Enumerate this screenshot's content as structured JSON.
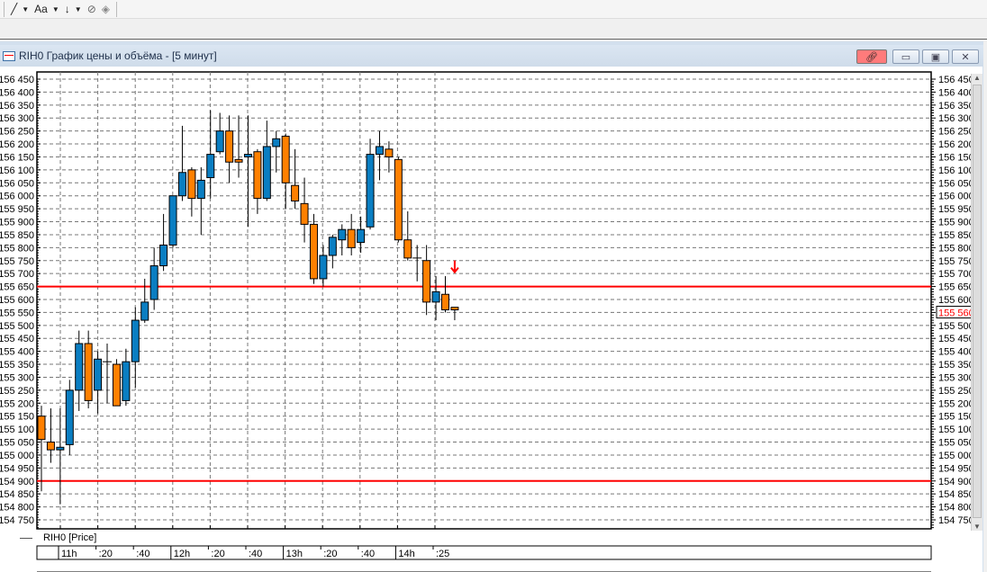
{
  "toolbar": {
    "items": [
      {
        "icon": "line-tool-icon"
      },
      {
        "label": "Aa",
        "icon": "text-tool-icon"
      },
      {
        "icon": "arrow-down-tool-icon"
      },
      {
        "icon": "hide-drawings-icon"
      },
      {
        "icon": "eraser-icon"
      }
    ]
  },
  "window": {
    "title": "RIH0 График цены и объёма - [5 минут]",
    "link_button_color": "#ff7b7b"
  },
  "legend": {
    "label": "RIH0 [Price]"
  },
  "chart_data": {
    "type": "candlestick",
    "title": "",
    "colors": {
      "up": "#0a7ec2",
      "down": "#ff8000",
      "hline": "#ff0000",
      "last_price": "#ff0000"
    },
    "ylim": [
      154750,
      156450
    ],
    "ytick_step": 50,
    "grid": true,
    "xticks": [
      "11h",
      ":20",
      ":40",
      "12h",
      ":20",
      ":40",
      "13h",
      ":20",
      ":40",
      "14h",
      ":25"
    ],
    "last_price_label": "155 560",
    "horizontal_lines": [
      155650,
      154900
    ],
    "arrow_marker": {
      "candle": 44,
      "direction": "down"
    },
    "candles_ohlc": [
      [
        155150,
        155190,
        154860,
        155060
      ],
      [
        155050,
        155180,
        154970,
        155020
      ],
      [
        155020,
        155180,
        154810,
        155030
      ],
      [
        155040,
        155290,
        155000,
        155250
      ],
      [
        155250,
        155480,
        155170,
        155430
      ],
      [
        155430,
        155480,
        155180,
        155210
      ],
      [
        155250,
        155400,
        155160,
        155370
      ],
      [
        155360,
        155430,
        155200,
        155360
      ],
      [
        155350,
        155370,
        155190,
        155190
      ],
      [
        155210,
        155410,
        155190,
        155360
      ],
      [
        155360,
        155570,
        155260,
        155520
      ],
      [
        155520,
        155680,
        155510,
        155590
      ],
      [
        155600,
        155800,
        155560,
        155730
      ],
      [
        155730,
        155930,
        155710,
        155810
      ],
      [
        155810,
        156000,
        155800,
        156000
      ],
      [
        156000,
        156270,
        155980,
        156090
      ],
      [
        156100,
        156110,
        155920,
        155990
      ],
      [
        155990,
        156110,
        155850,
        156060
      ],
      [
        156070,
        156330,
        155990,
        156160
      ],
      [
        156170,
        156320,
        156160,
        156250
      ],
      [
        156250,
        156310,
        156050,
        156130
      ],
      [
        156140,
        156310,
        156070,
        156130
      ],
      [
        156150,
        156310,
        155880,
        156160
      ],
      [
        156170,
        156180,
        155930,
        155990
      ],
      [
        155990,
        156290,
        155980,
        156190
      ],
      [
        156190,
        156250,
        156090,
        156220
      ],
      [
        156230,
        156240,
        155950,
        156050
      ],
      [
        156040,
        156180,
        155950,
        155980
      ],
      [
        155970,
        156070,
        155820,
        155890
      ],
      [
        155890,
        155930,
        155660,
        155680
      ],
      [
        155680,
        155810,
        155650,
        155770
      ],
      [
        155770,
        155850,
        155720,
        155840
      ],
      [
        155830,
        155890,
        155770,
        155870
      ],
      [
        155870,
        155930,
        155770,
        155800
      ],
      [
        155820,
        155920,
        155780,
        155870
      ],
      [
        155880,
        156220,
        155870,
        156160
      ],
      [
        156160,
        156250,
        156060,
        156190
      ],
      [
        156180,
        156210,
        156090,
        156150
      ],
      [
        156140,
        156150,
        155820,
        155830
      ],
      [
        155830,
        155940,
        155750,
        155760
      ],
      [
        155760,
        155810,
        155670,
        155760
      ],
      [
        155750,
        155810,
        155540,
        155590
      ],
      [
        155590,
        155690,
        155520,
        155630
      ],
      [
        155620,
        155690,
        155550,
        155560
      ],
      [
        155570,
        155570,
        155520,
        155560
      ]
    ]
  }
}
